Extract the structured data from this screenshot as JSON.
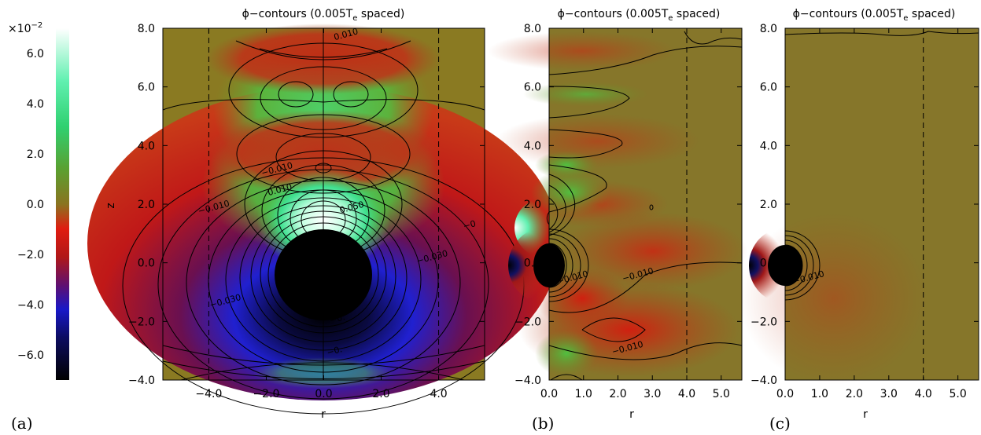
{
  "colorbar": {
    "exponent_label": "×10",
    "exponent_power": "−2",
    "ticks": [
      {
        "value": 6.0,
        "label": "6.0"
      },
      {
        "value": 4.0,
        "label": "4.0"
      },
      {
        "value": 2.0,
        "label": "2.0"
      },
      {
        "value": 0.0,
        "label": "0.0"
      },
      {
        "value": -2.0,
        "label": "−2.0"
      },
      {
        "value": -4.0,
        "label": "−4.0"
      },
      {
        "value": -6.0,
        "label": "−6.0"
      }
    ],
    "range": [
      -7.0,
      7.0
    ],
    "colors": [
      "#000000",
      "#1010d0",
      "#d01010",
      "#8a7a20",
      "#30e080",
      "#ffffff"
    ]
  },
  "chart_data": [
    {
      "type": "heatmap",
      "panel_label": "(a)",
      "title": "ϕ−contours (0.005T",
      "title_sub": "e",
      "title_end": " spaced)",
      "xlabel": "r",
      "ylabel": "z",
      "xlim": [
        -5.6,
        5.6
      ],
      "ylim": [
        -4.0,
        8.0
      ],
      "xticks": [
        {
          "v": -4.0,
          "t": "−4.0"
        },
        {
          "v": -2.0,
          "t": "−2.0"
        },
        {
          "v": 0.0,
          "t": "0.0"
        },
        {
          "v": 2.0,
          "t": "2.0"
        },
        {
          "v": 4.0,
          "t": "4.0"
        }
      ],
      "yticks": [
        {
          "v": -4.0,
          "t": "−4.0"
        },
        {
          "v": -2.0,
          "t": "−2.0"
        },
        {
          "v": 0.0,
          "t": "0.0"
        },
        {
          "v": 2.0,
          "t": "2.0"
        },
        {
          "v": 4.0,
          "t": "4.0"
        },
        {
          "v": 6.0,
          "t": "6.0"
        },
        {
          "v": 8.0,
          "t": "8.0"
        }
      ],
      "dashed_x": [
        -4.0,
        4.0
      ],
      "center_line_x": 0.0,
      "contour_labels": [
        {
          "text": "0.010",
          "x": 0.8,
          "y": 7.7
        },
        {
          "text": "−0.010",
          "x": -1.6,
          "y": 3.1
        },
        {
          "text": "0.010",
          "x": -1.5,
          "y": 2.4
        },
        {
          "text": "−0.010",
          "x": -3.8,
          "y": 1.8
        },
        {
          "text": "0.050",
          "x": 1.0,
          "y": 1.8
        },
        {
          "text": "−0.030",
          "x": 3.8,
          "y": 0.1
        },
        {
          "text": "−0.030",
          "x": -3.4,
          "y": -1.4
        },
        {
          "text": "−0.",
          "x": 0.5,
          "y": -2.0
        },
        {
          "text": "−0.",
          "x": 0.4,
          "y": -3.1
        },
        {
          "text": "−0",
          "x": 5.1,
          "y": 1.2
        }
      ]
    },
    {
      "type": "heatmap",
      "panel_label": "(b)",
      "title": "ϕ−contours (0.005T",
      "title_sub": "e",
      "title_end": " spaced)",
      "xlabel": "r",
      "xlim": [
        0.0,
        5.6
      ],
      "ylim": [
        -4.0,
        8.0
      ],
      "xticks": [
        {
          "v": 0.0,
          "t": "0.0"
        },
        {
          "v": 1.0,
          "t": "1.0"
        },
        {
          "v": 2.0,
          "t": "2.0"
        },
        {
          "v": 3.0,
          "t": "3.0"
        },
        {
          "v": 4.0,
          "t": "4.0"
        },
        {
          "v": 5.0,
          "t": "5.0"
        }
      ],
      "yticks": [
        {
          "v": -4.0,
          "t": "−4.0"
        },
        {
          "v": -2.0,
          "t": "−2.0"
        },
        {
          "v": 0.0,
          "t": "0.0"
        },
        {
          "v": 2.0,
          "t": "2.0"
        },
        {
          "v": 4.0,
          "t": "4.0"
        },
        {
          "v": 6.0,
          "t": "6.0"
        },
        {
          "v": 8.0,
          "t": "8.0"
        }
      ],
      "dashed_x": [
        4.0
      ],
      "contour_labels": [
        {
          "text": "−0.010",
          "x": 2.6,
          "y": -0.5
        },
        {
          "text": "−0.010",
          "x": 2.3,
          "y": -3.0
        },
        {
          "text": "−0.010",
          "x": 0.7,
          "y": -0.6
        }
      ]
    },
    {
      "type": "heatmap",
      "panel_label": "(c)",
      "title": "ϕ−contours (0.005T",
      "title_sub": "e",
      "title_end": " spaced)",
      "xlabel": "r",
      "xlim": [
        0.0,
        5.6
      ],
      "ylim": [
        -4.0,
        8.0
      ],
      "xticks": [
        {
          "v": 0.0,
          "t": "0.0"
        },
        {
          "v": 1.0,
          "t": "1.0"
        },
        {
          "v": 2.0,
          "t": "2.0"
        },
        {
          "v": 3.0,
          "t": "3.0"
        },
        {
          "v": 4.0,
          "t": "4.0"
        },
        {
          "v": 5.0,
          "t": "5.0"
        }
      ],
      "yticks": [
        {
          "v": -4.0,
          "t": "−4.0"
        },
        {
          "v": -2.0,
          "t": "−2.0"
        },
        {
          "v": 0.0,
          "t": "0.0"
        },
        {
          "v": 2.0,
          "t": "2.0"
        },
        {
          "v": 4.0,
          "t": "4.0"
        },
        {
          "v": 6.0,
          "t": "6.0"
        },
        {
          "v": 8.0,
          "t": "8.0"
        }
      ],
      "dashed_x": [
        4.0
      ],
      "contour_labels": [
        {
          "text": "−0.010",
          "x": 0.7,
          "y": -0.6
        }
      ]
    }
  ]
}
